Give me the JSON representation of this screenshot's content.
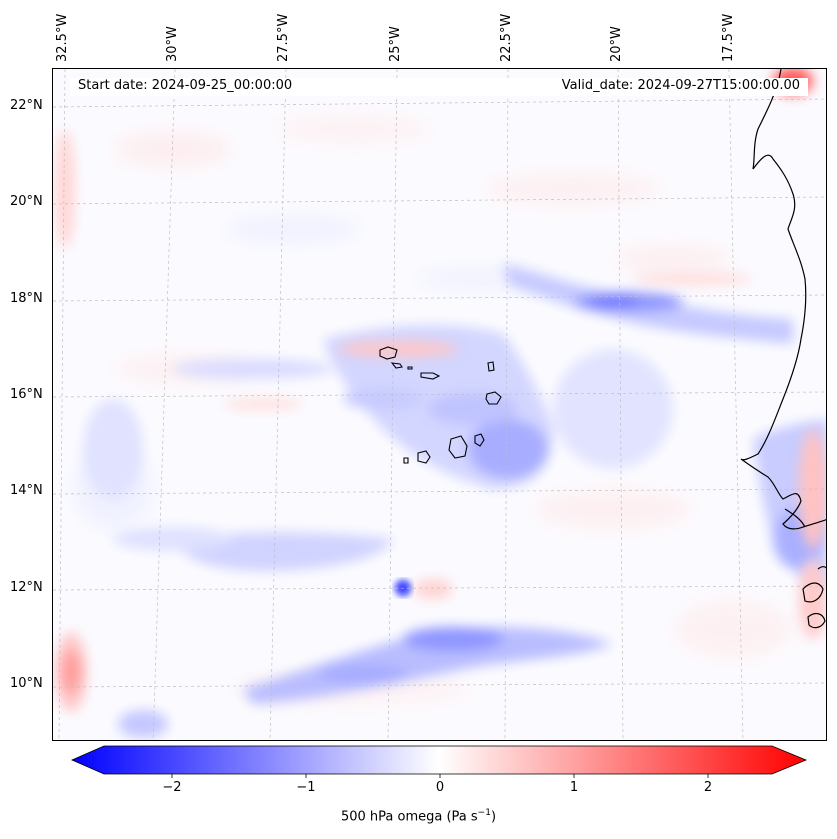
{
  "map": {
    "start_date": "Start date: 2024-09-25_00:00:00",
    "valid_date": "Valid_date: 2024-09-27T15:00:00.00",
    "longitude_labels": [
      "32.5°W",
      "30°W",
      "27.5°W",
      "25°W",
      "22.5°W",
      "20°W",
      "17.5°W"
    ],
    "latitude_labels": [
      "22°N",
      "20°N",
      "18°N",
      "16°N",
      "14°N",
      "12°N",
      "10°N"
    ]
  },
  "colorbar": {
    "label_prefix": "500 hPa omega (Pa s",
    "label_exponent": "−1",
    "label_suffix": ")",
    "ticks": [
      "−2",
      "−1",
      "0",
      "1",
      "2"
    ],
    "range": [
      -2.6,
      2.6
    ],
    "colors": {
      "negative": "#0000ff",
      "zero": "#ffffff",
      "positive": "#ff0000"
    }
  }
}
